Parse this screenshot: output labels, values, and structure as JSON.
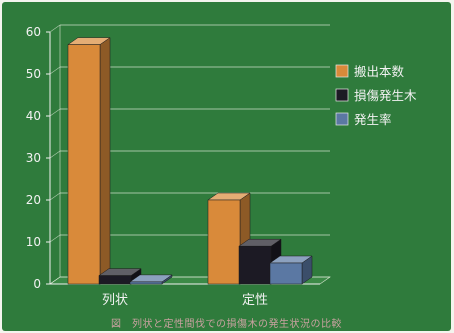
{
  "chart_data": {
    "type": "bar",
    "categories": [
      "列状",
      "定性"
    ],
    "series": [
      {
        "name": "搬出本数",
        "values": [
          57,
          20
        ],
        "color": "#d98a3a"
      },
      {
        "name": "損傷発生木",
        "values": [
          2,
          9
        ],
        "color": "#1c1a24"
      },
      {
        "name": "発生率",
        "values": [
          0.5,
          5
        ],
        "color": "#5b78a3"
      }
    ],
    "ylim": [
      0,
      60
    ],
    "yticks": [
      0,
      10,
      20,
      30,
      40,
      50,
      60
    ],
    "grid": true,
    "legend_position": "right",
    "background_color": "#2f7b3c",
    "caption": "図　列状と定性間伐での損傷木の発生状況の比較"
  }
}
